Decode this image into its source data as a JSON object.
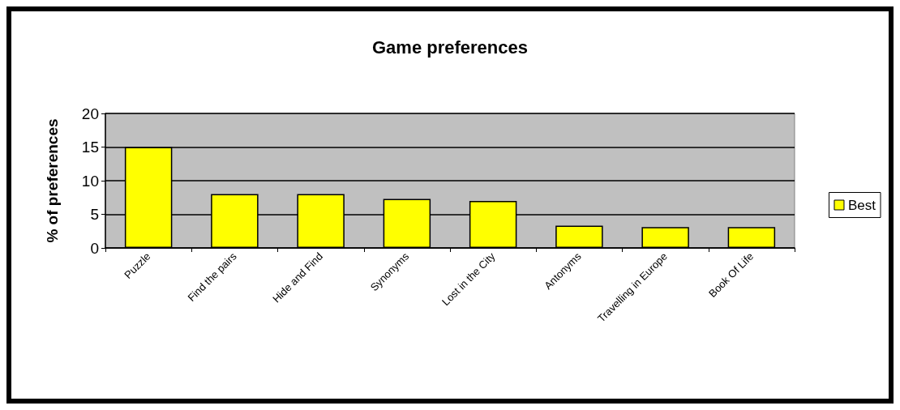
{
  "chart_data": {
    "type": "bar",
    "title": "Game preferences",
    "ylabel": "% of preferences",
    "categories": [
      "Puzzle",
      "Find the pairs",
      "Hide and Find",
      "Synonyms",
      "Lost in the City",
      "Antonyms",
      "Travelling in Europe",
      "Book Of Life"
    ],
    "series": [
      {
        "name": "Best",
        "color": "#ffff00",
        "values": [
          15,
          8,
          8,
          7.3,
          7,
          3.3,
          3.1,
          3.1
        ]
      }
    ],
    "ylim": [
      0,
      20
    ],
    "yticks": [
      0,
      5,
      10,
      15,
      20
    ],
    "grid": "y",
    "legend": "right"
  }
}
